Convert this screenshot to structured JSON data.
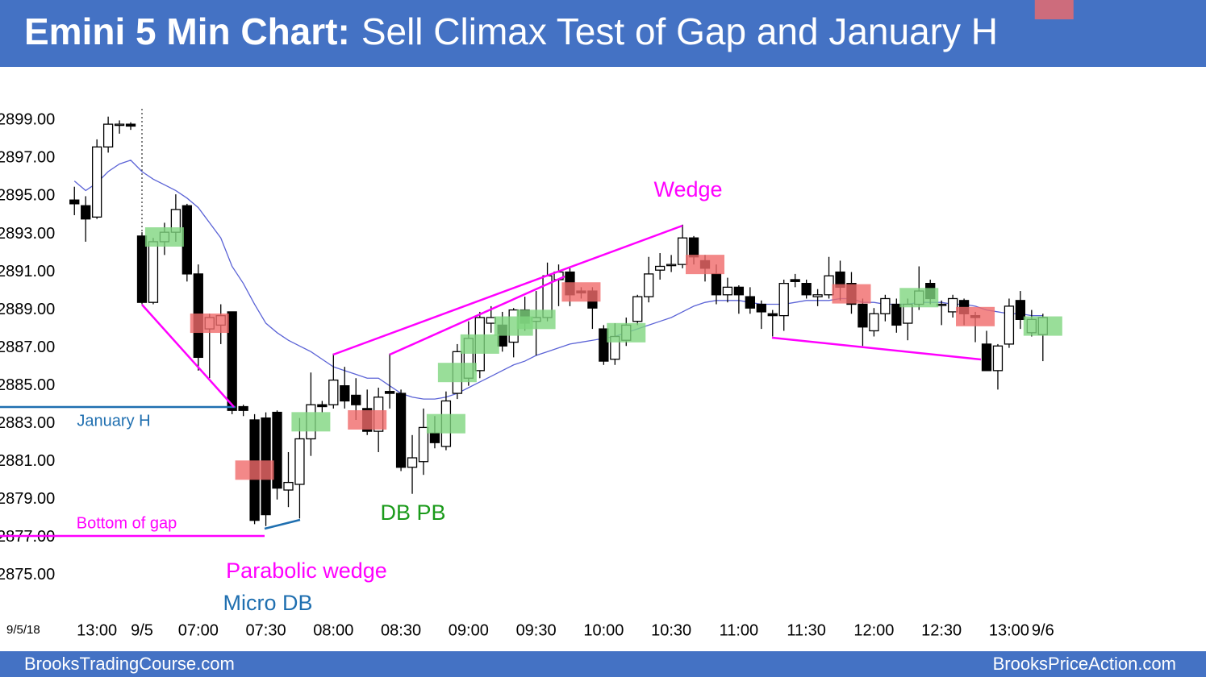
{
  "chart_data": {
    "type": "candlestick",
    "title_prefix": "Emini 5 Min Chart:",
    "title": "Sell Climax Test of Gap and January H",
    "date_label": "9/5/18",
    "categories": [
      null,
      null,
      "13:00",
      null,
      null,
      null,
      "9/5",
      null,
      null,
      null,
      null,
      "07:00",
      null,
      null,
      null,
      null,
      null,
      "07:30",
      null,
      null,
      null,
      null,
      null,
      "08:00",
      null,
      null,
      null,
      null,
      null,
      "08:30",
      null,
      null,
      null,
      null,
      null,
      "09:00",
      null,
      null,
      null,
      null,
      null,
      "09:30",
      null,
      null,
      null,
      null,
      null,
      "10:00",
      null,
      null,
      null,
      null,
      null,
      "10:30",
      null,
      null,
      null,
      null,
      null,
      "11:00",
      null,
      null,
      null,
      null,
      null,
      "11:30",
      null,
      null,
      null,
      null,
      null,
      "12:00",
      null,
      null,
      null,
      null,
      null,
      "12:30",
      null,
      null,
      null,
      null,
      null,
      "13:00",
      null,
      null,
      "9/6"
    ],
    "open": [
      2894.8,
      2894.5,
      2893.9,
      2897.6,
      2898.8,
      2898.8,
      2892.9,
      2889.4,
      2892.6,
      2893.1,
      2894.5,
      2890.9,
      2888.0,
      2888.2,
      2888.9,
      2883.9,
      2883.2,
      2883.3,
      2883.6,
      2879.5,
      2879.8,
      2882.2,
      2884.0,
      2884.0,
      2885.0,
      2884.5,
      2883.8,
      2882.6,
      2884.7,
      2884.6,
      2880.7,
      2881.0,
      2882.5,
      2881.8,
      2884.6,
      2885.4,
      2885.8,
      2888.3,
      2888.2,
      2887.3,
      2889.0,
      2888.4,
      2888.6,
      2890.6,
      2891.0,
      2890.0,
      2890.0,
      2888.0,
      2886.4,
      2887.4,
      2888.4,
      2889.7,
      2891.1,
      2891.4,
      2891.4,
      2892.8,
      2891.6,
      2890.9,
      2889.8,
      2890.2,
      2889.7,
      2889.3,
      2888.8,
      2888.7,
      2890.6,
      2890.4,
      2889.7,
      2889.8,
      2891.0,
      2890.4,
      2889.3,
      2887.9,
      2888.8,
      2889.3,
      2888.3,
      2889.3,
      2890.4,
      2889.3,
      2888.9,
      2889.5,
      2888.7,
      2887.2,
      2885.8,
      2887.2,
      2889.5,
      2887.8,
      2887.7
    ],
    "high": [
      2895.5,
      2895.0,
      2898.0,
      2899.2,
      2899.0,
      2898.9,
      2893.1,
      2892.8,
      2893.6,
      2895.1,
      2894.6,
      2891.4,
      2888.8,
      2889.3,
      2888.9,
      2884.0,
      2883.5,
      2883.6,
      2883.7,
      2881.5,
      2883.3,
      2885.7,
      2884.2,
      2886.7,
      2886.0,
      2885.4,
      2884.8,
      2884.9,
      2886.7,
      2884.8,
      2882.4,
      2883.8,
      2883.4,
      2884.7,
      2887.2,
      2888.4,
      2888.9,
      2889.2,
      2888.9,
      2889.1,
      2889.7,
      2890.0,
      2891.5,
      2891.4,
      2891.2,
      2890.2,
      2890.2,
      2888.2,
      2888.3,
      2888.6,
      2889.8,
      2891.8,
      2892.0,
      2891.9,
      2893.5,
      2892.9,
      2891.9,
      2891.4,
      2890.7,
      2890.3,
      2890.2,
      2889.5,
      2889.0,
      2890.6,
      2890.9,
      2890.6,
      2890.1,
      2891.8,
      2891.6,
      2891.0,
      2889.6,
      2889.1,
      2889.8,
      2889.6,
      2889.6,
      2891.3,
      2890.6,
      2889.5,
      2889.8,
      2889.6,
      2888.9,
      2887.9,
      2887.2,
      2889.6,
      2890.0,
      2889.0,
      2888.8
    ],
    "low": [
      2894.0,
      2892.6,
      2893.8,
      2897.3,
      2898.3,
      2898.5,
      2889.3,
      2889.3,
      2891.9,
      2892.6,
      2890.5,
      2885.8,
      2885.4,
      2887.2,
      2883.5,
      2883.4,
      2877.7,
      2877.6,
      2879.0,
      2878.6,
      2878.0,
      2881.3,
      2883.6,
      2883.8,
      2883.8,
      2883.2,
      2882.4,
      2881.5,
      2883.8,
      2880.5,
      2879.3,
      2880.3,
      2881.7,
      2881.6,
      2884.3,
      2885.0,
      2885.4,
      2887.8,
      2886.8,
      2886.5,
      2887.9,
      2886.6,
      2888.4,
      2889.2,
      2889.2,
      2889.6,
      2888.0,
      2886.1,
      2886.1,
      2887.1,
      2888.2,
      2889.4,
      2890.6,
      2891.0,
      2891.2,
      2891.4,
      2890.5,
      2889.3,
      2889.4,
      2888.8,
      2888.8,
      2888.0,
      2887.6,
      2887.9,
      2890.2,
      2889.6,
      2889.2,
      2889.6,
      2889.5,
      2888.8,
      2887.1,
      2887.6,
      2888.4,
      2887.8,
      2887.4,
      2889.0,
      2889.3,
      2888.2,
      2888.6,
      2888.2,
      2887.3,
      2885.8,
      2884.8,
      2887.0,
      2888.0,
      2887.6,
      2886.3
    ],
    "close": [
      2894.6,
      2893.8,
      2897.6,
      2898.8,
      2898.8,
      2898.7,
      2889.4,
      2892.6,
      2893.1,
      2894.3,
      2890.9,
      2886.5,
      2888.6,
      2888.7,
      2883.7,
      2883.7,
      2877.9,
      2878.2,
      2879.6,
      2879.9,
      2882.2,
      2884.0,
      2883.9,
      2885.3,
      2884.2,
      2884.0,
      2882.6,
      2884.4,
      2884.6,
      2880.7,
      2881.2,
      2882.8,
      2882.0,
      2884.2,
      2886.8,
      2887.5,
      2888.6,
      2888.6,
      2887.1,
      2889.0,
      2888.3,
      2888.6,
      2890.8,
      2891.0,
      2889.8,
      2889.9,
      2889.1,
      2886.3,
      2887.6,
      2888.2,
      2889.7,
      2890.9,
      2891.3,
      2891.4,
      2892.8,
      2891.8,
      2891.2,
      2889.8,
      2890.2,
      2889.8,
      2889.1,
      2888.9,
      2888.7,
      2890.4,
      2890.5,
      2889.8,
      2889.8,
      2890.8,
      2890.2,
      2889.3,
      2888.1,
      2888.8,
      2889.6,
      2888.2,
      2889.3,
      2890.0,
      2889.6,
      2889.3,
      2889.6,
      2888.8,
      2888.6,
      2885.8,
      2887.1,
      2889.2,
      2888.5,
      2888.5,
      2888.6
    ],
    "ema": [
      2895.8,
      2895.3,
      2895.7,
      2896.3,
      2896.7,
      2896.9,
      2896.3,
      2895.9,
      2895.6,
      2895.3,
      2894.9,
      2894.4,
      2893.6,
      2892.8,
      2891.3,
      2890.4,
      2889.3,
      2888.3,
      2887.8,
      2887.4,
      2887.1,
      2886.8,
      2886.4,
      2886.0,
      2885.8,
      2885.6,
      2885.4,
      2885.4,
      2885.0,
      2884.6,
      2884.4,
      2884.3,
      2884.3,
      2884.4,
      2884.6,
      2884.9,
      2885.2,
      2885.5,
      2885.8,
      2886.1,
      2886.3,
      2886.6,
      2886.8,
      2887.0,
      2887.2,
      2887.3,
      2887.4,
      2887.5,
      2887.6,
      2887.8,
      2888.0,
      2888.2,
      2888.4,
      2888.6,
      2888.9,
      2889.2,
      2889.4,
      2889.5,
      2889.5,
      2889.5,
      2889.4,
      2889.3,
      2889.3,
      2889.3,
      2889.4,
      2889.5,
      2889.5,
      2889.5,
      2889.6,
      2889.6,
      2889.4,
      2889.4,
      2889.3,
      2889.3,
      2889.3,
      2889.4,
      2889.4,
      2889.4,
      2889.3,
      2889.3,
      2889.2,
      2889.0,
      2888.9,
      2888.8,
      2888.8,
      2888.7,
      2888.7
    ],
    "ema_color": "#5b63d6",
    "highlights": [
      null,
      null,
      null,
      null,
      null,
      null,
      null,
      null,
      "#7fd67f",
      null,
      null,
      null,
      "#f06a6a",
      null,
      null,
      null,
      "#f06a6a",
      null,
      null,
      null,
      null,
      "#7fd67f",
      null,
      null,
      null,
      null,
      "#f06a6a",
      null,
      null,
      null,
      null,
      null,
      null,
      "#7fd67f",
      "#7fd67f",
      null,
      "#7fd67f",
      null,
      null,
      "#7fd67f",
      null,
      "#7fd67f",
      null,
      null,
      null,
      "#f06a6a",
      null,
      null,
      null,
      "#7fd67f",
      null,
      null,
      null,
      null,
      null,
      null,
      "#f06a6a",
      null,
      null,
      null,
      null,
      null,
      null,
      null,
      null,
      null,
      null,
      null,
      null,
      "#f06a6a",
      null,
      null,
      null,
      null,
      null,
      "#7fd67f",
      null,
      null,
      null,
      null,
      "#f06a6a",
      null,
      null,
      null,
      null,
      null,
      "#7fd67f",
      "#f06a6a"
    ],
    "ylim": [
      2872.4,
      2901.1
    ],
    "yticks": [
      {
        "value": 2899,
        "label": "2899.00"
      },
      {
        "value": 2897,
        "label": "2897.00"
      },
      {
        "value": 2895,
        "label": "2895.00"
      },
      {
        "value": 2893,
        "label": "2893.00"
      },
      {
        "value": 2891,
        "label": "2891.00"
      },
      {
        "value": 2889,
        "label": "2889.00"
      },
      {
        "value": 2887,
        "label": "2887.00"
      },
      {
        "value": 2885,
        "label": "2885.00"
      },
      {
        "value": 2883,
        "label": "2883.00"
      },
      {
        "value": 2881,
        "label": "2881.00"
      },
      {
        "value": 2879,
        "label": "2879.00"
      },
      {
        "value": 2877,
        "label": "2877.00"
      },
      {
        "value": 2875,
        "label": "2875.00"
      }
    ],
    "annotations": [
      "Wedge",
      "DB PB",
      "Parabolic wedge",
      "Micro DB",
      "January H",
      "Bottom of gap"
    ]
  },
  "footer": {
    "left": "BrooksTradingCourse.com",
    "right": "BrooksPriceAction.com"
  }
}
